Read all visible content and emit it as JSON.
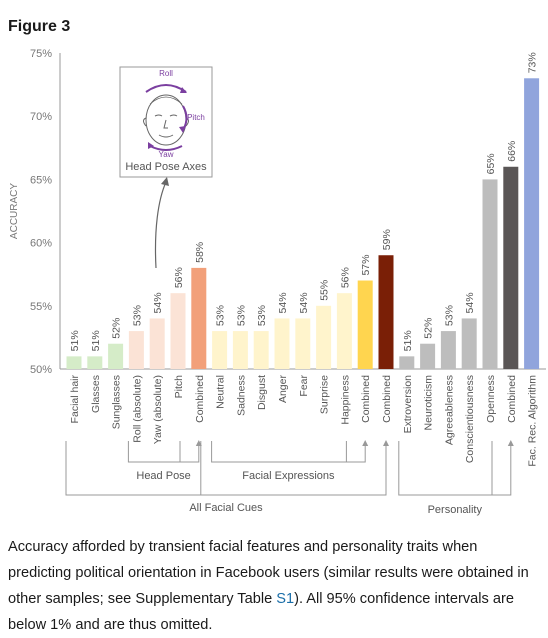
{
  "figure": {
    "title": "Figure 3"
  },
  "caption": {
    "before": "Accuracy afforded by transient facial features and personality traits when predicting political orientation in Facebook users (similar results were obtained in other samples; see Supplementary Table ",
    "link": "S1",
    "after": "). All 95% confidence intervals are below 1% and are thus omitted."
  },
  "inset": {
    "caption": "Head Pose Axes",
    "labels": {
      "roll": "Roll",
      "pitch": "Pitch",
      "yaw": "Yaw"
    }
  },
  "chart_data": {
    "type": "bar",
    "ylabel": "ACCURACY",
    "ylim": [
      50,
      75
    ],
    "yticks": [
      "50%",
      "55%",
      "60%",
      "65%",
      "70%",
      "75%"
    ],
    "categories": [
      "Facial hair",
      "Glasses",
      "Sunglasses",
      "Roll (absolute)",
      "Yaw (absolute)",
      "Pitch",
      "Combined",
      "Neutral",
      "Sadness",
      "Disgust",
      "Anger",
      "Fear",
      "Surprise",
      "Happiness",
      "Combined",
      "Combined",
      "Extroversion",
      "Neuroticism",
      "Agreeableness",
      "Conscientiousness",
      "Openness",
      "Combined",
      "Fac. Rec. Algorithm"
    ],
    "values": [
      51,
      51,
      52,
      53,
      54,
      56,
      58,
      53,
      53,
      53,
      54,
      54,
      55,
      56,
      57,
      59,
      51,
      52,
      53,
      54,
      65,
      66,
      73
    ],
    "value_labels": [
      "51%",
      "51%",
      "52%",
      "53%",
      "54%",
      "56%",
      "58%",
      "53%",
      "53%",
      "53%",
      "54%",
      "54%",
      "55%",
      "56%",
      "57%",
      "59%",
      "51%",
      "52%",
      "53%",
      "54%",
      "65%",
      "66%",
      "73%"
    ],
    "colors": [
      "#d5ecc8",
      "#d5ecc8",
      "#d5ecc8",
      "#fbe3d6",
      "#fbe3d6",
      "#fbe3d6",
      "#f2a07a",
      "#fff4cc",
      "#fff4cc",
      "#fff4cc",
      "#fff4cc",
      "#fff4cc",
      "#fff4cc",
      "#fff4cc",
      "#ffd54f",
      "#7a1f06",
      "#bdbdbd",
      "#bdbdbd",
      "#bdbdbd",
      "#bdbdbd",
      "#bdbdbd",
      "#5a5656",
      "#90a4dc"
    ],
    "groups": [
      {
        "label": "Head Pose",
        "from": 3,
        "to": 5,
        "target": 6
      },
      {
        "label": "Facial Expressions",
        "from": 7,
        "to": 13,
        "target": 14
      },
      {
        "label": "All Facial Cues",
        "from": 0,
        "to": 6,
        "target": 15
      },
      {
        "label": "Personality",
        "from": 16,
        "to": 20,
        "target": 21
      }
    ],
    "grid": false,
    "legend": "none"
  }
}
